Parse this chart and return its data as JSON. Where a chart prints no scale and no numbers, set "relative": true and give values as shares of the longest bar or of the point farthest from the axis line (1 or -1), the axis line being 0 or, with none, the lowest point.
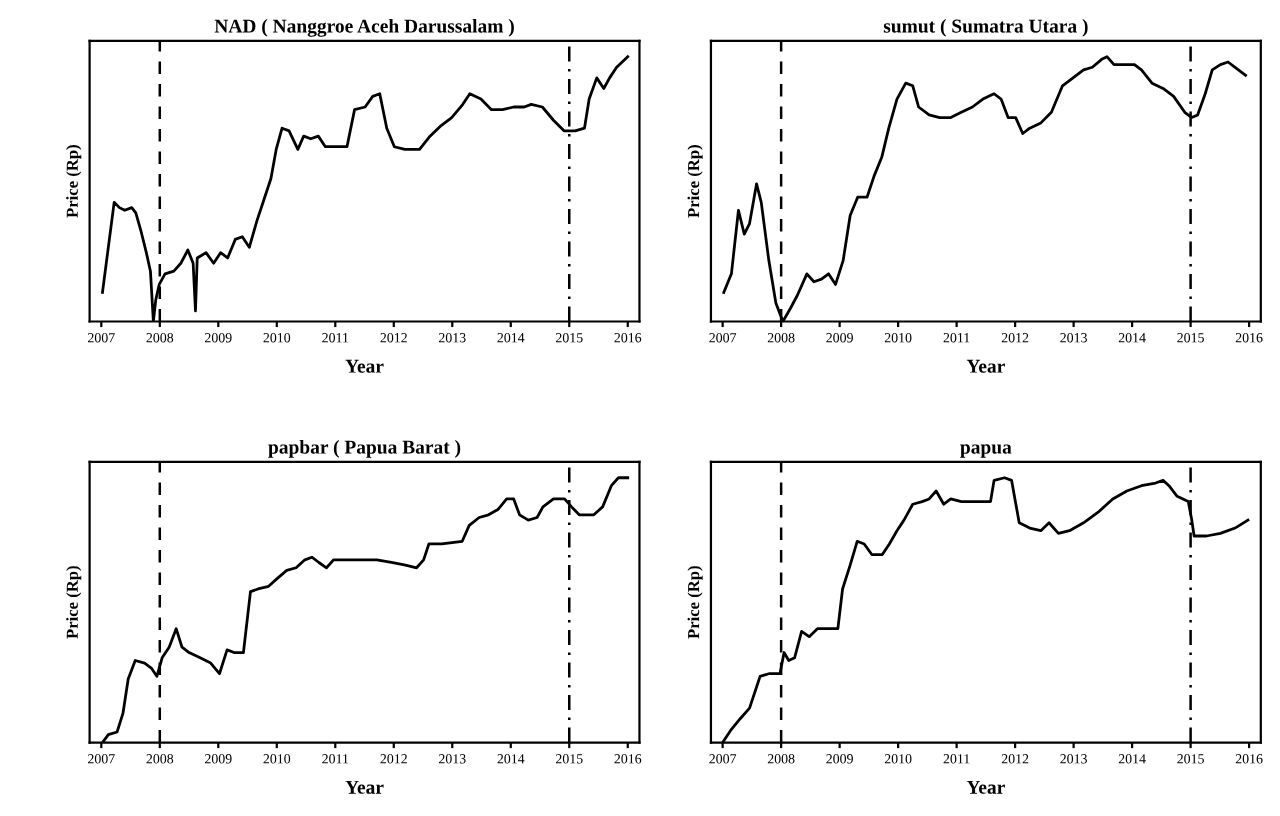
{
  "chart_data": [
    {
      "type": "line",
      "title": "NAD ( Nanggroe Aceh Darussalam )",
      "xlabel": "Year",
      "ylabel": "Price (Rp)",
      "relative": true,
      "tick_labels": "x",
      "xlim": [
        2006.8,
        2016.2
      ],
      "xticks": [
        2007,
        2008,
        2009,
        2010,
        2011,
        2012,
        2013,
        2014,
        2015,
        2016
      ],
      "ref_lines": [
        {
          "axis": "x",
          "value": 2008,
          "line_style": "dashed"
        },
        {
          "axis": "x",
          "value": 2015,
          "line_style": "dashdot"
        }
      ],
      "series": [
        {
          "color": "#000000",
          "x": [
            2007.02,
            2007.22,
            2007.31,
            2007.4,
            2007.52,
            2007.59,
            2007.68,
            2007.77,
            2007.84,
            2007.89,
            2007.93,
            2007.99,
            2008.09,
            2008.24,
            2008.36,
            2008.48,
            2008.57,
            2008.61,
            2008.64,
            2008.79,
            2008.92,
            2009.04,
            2009.16,
            2009.29,
            2009.41,
            2009.53,
            2009.66,
            2009.78,
            2009.9,
            2009.99,
            2010.09,
            2010.21,
            2010.36,
            2010.46,
            2010.58,
            2010.71,
            2010.83,
            2011.02,
            2011.2,
            2011.33,
            2011.51,
            2011.64,
            2011.76,
            2011.88,
            2012.01,
            2012.19,
            2012.44,
            2012.62,
            2012.81,
            2012.99,
            2013.18,
            2013.3,
            2013.49,
            2013.67,
            2013.86,
            2014.05,
            2014.23,
            2014.35,
            2014.54,
            2014.73,
            2014.91,
            2015.1,
            2015.26,
            2015.34,
            2015.47,
            2015.59,
            2015.69,
            2015.81,
            2016.0
          ],
          "values": [
            0.11,
            0.45,
            0.43,
            0.42,
            0.43,
            0.41,
            0.34,
            0.26,
            0.19,
            0.0,
            0.08,
            0.14,
            0.18,
            0.19,
            0.22,
            0.27,
            0.22,
            0.04,
            0.24,
            0.26,
            0.22,
            0.26,
            0.24,
            0.31,
            0.32,
            0.28,
            0.38,
            0.46,
            0.54,
            0.65,
            0.73,
            0.72,
            0.65,
            0.7,
            0.69,
            0.7,
            0.66,
            0.66,
            0.66,
            0.8,
            0.81,
            0.85,
            0.86,
            0.73,
            0.66,
            0.65,
            0.65,
            0.7,
            0.74,
            0.77,
            0.82,
            0.86,
            0.84,
            0.8,
            0.8,
            0.81,
            0.81,
            0.82,
            0.81,
            0.76,
            0.72,
            0.72,
            0.73,
            0.84,
            0.92,
            0.88,
            0.92,
            0.96,
            1.0
          ]
        }
      ]
    },
    {
      "type": "line",
      "title": "sumut ( Sumatra Utara )",
      "xlabel": "Year",
      "ylabel": "Price (Rp)",
      "relative": true,
      "tick_labels": "x",
      "xlim": [
        2006.8,
        2016.2
      ],
      "xticks": [
        2007,
        2008,
        2009,
        2010,
        2011,
        2012,
        2013,
        2014,
        2015,
        2016
      ],
      "ref_lines": [
        {
          "axis": "x",
          "value": 2008,
          "line_style": "dashed"
        },
        {
          "axis": "x",
          "value": 2015,
          "line_style": "dashdot"
        }
      ],
      "series": [
        {
          "color": "#000000",
          "x": [
            2007.02,
            2007.15,
            2007.27,
            2007.37,
            2007.46,
            2007.58,
            2007.66,
            2007.79,
            2007.91,
            2008.03,
            2008.16,
            2008.28,
            2008.44,
            2008.56,
            2008.69,
            2008.81,
            2008.93,
            2009.06,
            2009.18,
            2009.31,
            2009.47,
            2009.59,
            2009.72,
            2009.84,
            2009.98,
            2010.13,
            2010.25,
            2010.35,
            2010.53,
            2010.71,
            2010.9,
            2011.08,
            2011.27,
            2011.45,
            2011.64,
            2011.76,
            2011.88,
            2012.01,
            2012.13,
            2012.25,
            2012.44,
            2012.62,
            2012.81,
            2012.99,
            2013.17,
            2013.32,
            2013.48,
            2013.57,
            2013.69,
            2013.85,
            2014.04,
            2014.16,
            2014.34,
            2014.53,
            2014.71,
            2014.9,
            2015.02,
            2015.12,
            2015.25,
            2015.37,
            2015.51,
            2015.64,
            2015.76,
            2015.94
          ],
          "values": [
            0.11,
            0.18,
            0.42,
            0.33,
            0.37,
            0.52,
            0.45,
            0.23,
            0.07,
            0.0,
            0.05,
            0.1,
            0.18,
            0.15,
            0.16,
            0.18,
            0.14,
            0.23,
            0.4,
            0.47,
            0.47,
            0.55,
            0.62,
            0.73,
            0.84,
            0.9,
            0.89,
            0.81,
            0.78,
            0.77,
            0.77,
            0.79,
            0.81,
            0.84,
            0.86,
            0.84,
            0.77,
            0.77,
            0.71,
            0.73,
            0.75,
            0.79,
            0.89,
            0.92,
            0.95,
            0.96,
            0.99,
            1.0,
            0.97,
            0.97,
            0.97,
            0.95,
            0.9,
            0.88,
            0.85,
            0.79,
            0.77,
            0.78,
            0.86,
            0.95,
            0.97,
            0.98,
            0.96,
            0.93
          ]
        }
      ]
    },
    {
      "type": "line",
      "title": "papbar ( Papua Barat )",
      "xlabel": "Year",
      "ylabel": "Price (Rp)",
      "relative": true,
      "tick_labels": "x",
      "xlim": [
        2006.8,
        2016.2
      ],
      "xticks": [
        2007,
        2008,
        2009,
        2010,
        2011,
        2012,
        2013,
        2014,
        2015,
        2016
      ],
      "ref_lines": [
        {
          "axis": "x",
          "value": 2008,
          "line_style": "dashed"
        },
        {
          "axis": "x",
          "value": 2015,
          "line_style": "dashdot"
        }
      ],
      "series": [
        {
          "color": "#000000",
          "x": [
            2007.02,
            2007.12,
            2007.27,
            2007.37,
            2007.46,
            2007.58,
            2007.74,
            2007.86,
            2007.95,
            2008.04,
            2008.16,
            2008.28,
            2008.38,
            2008.5,
            2008.69,
            2008.87,
            2009.02,
            2009.15,
            2009.27,
            2009.43,
            2009.55,
            2009.68,
            2009.86,
            2010.01,
            2010.17,
            2010.33,
            2010.48,
            2010.6,
            2010.72,
            2010.85,
            2010.97,
            2011.22,
            2011.46,
            2011.71,
            2011.96,
            2012.2,
            2012.39,
            2012.51,
            2012.6,
            2012.82,
            2013.17,
            2013.29,
            2013.46,
            2013.62,
            2013.78,
            2013.93,
            2014.05,
            2014.15,
            2014.3,
            2014.45,
            2014.55,
            2014.73,
            2014.92,
            2015.04,
            2015.17,
            2015.42,
            2015.57,
            2015.72,
            2015.84,
            2016.0
          ],
          "values": [
            0.0,
            0.03,
            0.04,
            0.11,
            0.24,
            0.31,
            0.3,
            0.28,
            0.25,
            0.32,
            0.36,
            0.43,
            0.36,
            0.34,
            0.32,
            0.3,
            0.26,
            0.35,
            0.34,
            0.34,
            0.57,
            0.58,
            0.59,
            0.62,
            0.65,
            0.66,
            0.69,
            0.7,
            0.68,
            0.66,
            0.69,
            0.69,
            0.69,
            0.69,
            0.68,
            0.67,
            0.66,
            0.69,
            0.75,
            0.75,
            0.76,
            0.82,
            0.85,
            0.86,
            0.88,
            0.92,
            0.92,
            0.86,
            0.84,
            0.85,
            0.89,
            0.92,
            0.92,
            0.89,
            0.86,
            0.86,
            0.89,
            0.97,
            1.0,
            1.0
          ]
        }
      ]
    },
    {
      "type": "line",
      "title": "papua",
      "xlabel": "Year",
      "ylabel": "Price (Rp)",
      "relative": true,
      "tick_labels": "x",
      "xlim": [
        2006.8,
        2016.2
      ],
      "xticks": [
        2007,
        2008,
        2009,
        2010,
        2011,
        2012,
        2013,
        2014,
        2015,
        2016
      ],
      "ref_lines": [
        {
          "axis": "x",
          "value": 2008,
          "line_style": "dashed"
        },
        {
          "axis": "x",
          "value": 2015,
          "line_style": "dashdot"
        }
      ],
      "series": [
        {
          "color": "#000000",
          "x": [
            2007.0,
            2007.15,
            2007.3,
            2007.46,
            2007.55,
            2007.64,
            2007.79,
            2007.98,
            2008.05,
            2008.13,
            2008.23,
            2008.35,
            2008.48,
            2008.62,
            2008.81,
            2008.97,
            2009.05,
            2009.18,
            2009.3,
            2009.42,
            2009.55,
            2009.73,
            2009.85,
            2009.98,
            2010.1,
            2010.25,
            2010.41,
            2010.53,
            2010.65,
            2010.78,
            2010.9,
            2011.08,
            2011.33,
            2011.58,
            2011.64,
            2011.82,
            2011.94,
            2012.07,
            2012.25,
            2012.44,
            2012.58,
            2012.74,
            2012.93,
            2013.17,
            2013.42,
            2013.67,
            2013.91,
            2014.16,
            2014.4,
            2014.53,
            2014.63,
            2014.77,
            2014.96,
            2015.02,
            2015.06,
            2015.27,
            2015.51,
            2015.76,
            2015.98
          ],
          "values": [
            0.0,
            0.05,
            0.09,
            0.13,
            0.19,
            0.25,
            0.26,
            0.26,
            0.34,
            0.31,
            0.32,
            0.42,
            0.4,
            0.43,
            0.43,
            0.43,
            0.58,
            0.67,
            0.76,
            0.75,
            0.71,
            0.71,
            0.75,
            0.8,
            0.84,
            0.9,
            0.91,
            0.92,
            0.95,
            0.9,
            0.92,
            0.91,
            0.91,
            0.91,
            0.99,
            1.0,
            0.99,
            0.83,
            0.81,
            0.8,
            0.83,
            0.79,
            0.8,
            0.83,
            0.87,
            0.92,
            0.95,
            0.97,
            0.98,
            0.99,
            0.97,
            0.93,
            0.91,
            0.84,
            0.78,
            0.78,
            0.79,
            0.81,
            0.84
          ]
        }
      ]
    }
  ]
}
